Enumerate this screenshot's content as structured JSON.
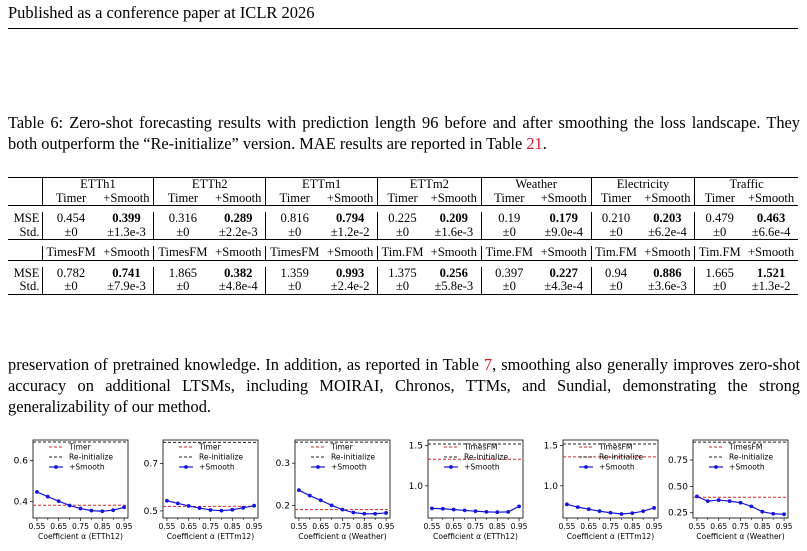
{
  "header": {
    "text": "Published as a conference paper at ICLR 2026"
  },
  "caption": {
    "prefix": "Table 6: Zero-shot forecasting results with prediction length 96 before and after smoothing the loss landscape. They both outperform the “Re-initialize” version. MAE results are reported in Table ",
    "ref": "21",
    "suffix": "."
  },
  "table": {
    "top_groups": [
      "ETTh1",
      "ETTh2",
      "ETTm1",
      "ETTm2",
      "Weather",
      "Electricity",
      "Traffic"
    ],
    "top_sub": [
      "Timer",
      "+Smooth"
    ],
    "top_rows": [
      {
        "label": "MSE",
        "cells": [
          "0.454",
          "0.399",
          "0.316",
          "0.289",
          "0.816",
          "0.794",
          "0.225",
          "0.209",
          "0.19",
          "0.179",
          "0.210",
          "0.203",
          "0.479",
          "0.463"
        ]
      },
      {
        "label": "Std.",
        "cells": [
          "±0",
          "±1.3e-3",
          "±0",
          "±2.2e-3",
          "±0",
          "±1.2e-2",
          "±0",
          "±1.6e-3",
          "±0",
          "±9.0e-4",
          "±0",
          "±6.2e-4",
          "±0",
          "±6.6e-4"
        ]
      }
    ],
    "bottom_sub": [
      "TimesFM",
      "+Smooth",
      "TimesFM",
      "+Smooth",
      "TimesFM",
      "+Smooth",
      "Tim.FM",
      "+Smooth",
      "Time.FM",
      "+Smooth",
      "Tim.FM",
      "+Smooth",
      "Tim.FM",
      "+Smooth"
    ],
    "bottom_rows": [
      {
        "label": "MSE",
        "cells": [
          "0.782",
          "0.741",
          "1.865",
          "0.382",
          "1.359",
          "0.993",
          "1.375",
          "0.256",
          "0.397",
          "0.227",
          "0.94",
          "0.886",
          "1.665",
          "1.521"
        ]
      },
      {
        "label": "Std.",
        "cells": [
          "±0",
          "±7.9e-3",
          "±0",
          "±4.8e-4",
          "±0",
          "±2.4e-2",
          "±0",
          "±5.8e-3",
          "±0",
          "±4.3e-4",
          "±0",
          "±3.6e-3",
          "±0",
          "±1.3e-2"
        ]
      }
    ]
  },
  "body": {
    "prefix": "preservation of pretrained knowledge. In addition, as reported in Table ",
    "ref": "7",
    "suffix": ", smoothing also generally improves zero-shot accuracy on additional LTSMs, including MOIRAI, Chronos, TTMs, and Sundial, demonstrating the strong generalizability of our method."
  },
  "chart_data": [
    {
      "type": "line",
      "xlabel": "Coefficient α (ETTh12)",
      "x": [
        0.55,
        0.6,
        0.65,
        0.7,
        0.75,
        0.8,
        0.85,
        0.9,
        0.95
      ],
      "xticks": [
        "0.55",
        "0.65",
        "0.75",
        "0.85",
        "0.95"
      ],
      "ylim": [
        0.32,
        0.7
      ],
      "yticks": [
        0.4,
        0.6
      ],
      "yticklabels": [
        "0.4",
        "0.6"
      ],
      "hlines": [
        {
          "name": "Timer",
          "y": 0.382,
          "color": "#d62728"
        },
        {
          "name": "Re-initialize",
          "y": 0.69,
          "color": "#222222"
        }
      ],
      "series": [
        {
          "name": "+Smooth",
          "color": "#1515e0",
          "values": [
            0.447,
            0.424,
            0.402,
            0.381,
            0.366,
            0.356,
            0.353,
            0.358,
            0.372
          ]
        }
      ]
    },
    {
      "type": "line",
      "xlabel": "Coefficient α (ETTm12)",
      "x": [
        0.55,
        0.6,
        0.65,
        0.7,
        0.75,
        0.8,
        0.85,
        0.9,
        0.95
      ],
      "xticks": [
        "0.55",
        "0.65",
        "0.75",
        "0.85",
        "0.95"
      ],
      "ylim": [
        0.47,
        0.8
      ],
      "yticks": [
        0.5,
        0.7
      ],
      "yticklabels": [
        "0.5",
        "0.7"
      ],
      "hlines": [
        {
          "name": "Timer",
          "y": 0.519,
          "color": "#d62728"
        },
        {
          "name": "Re-initialize",
          "y": 0.79,
          "color": "#222222"
        }
      ],
      "series": [
        {
          "name": "+Smooth",
          "color": "#1515e0",
          "values": [
            0.543,
            0.532,
            0.521,
            0.512,
            0.504,
            0.501,
            0.505,
            0.513,
            0.522
          ]
        }
      ]
    },
    {
      "type": "line",
      "xlabel": "Coefficient α (Weather)",
      "x": [
        0.55,
        0.6,
        0.65,
        0.7,
        0.75,
        0.8,
        0.85,
        0.9,
        0.95
      ],
      "xticks": [
        "0.55",
        "0.65",
        "0.75",
        "0.85",
        "0.95"
      ],
      "ylim": [
        0.17,
        0.355
      ],
      "yticks": [
        0.2,
        0.3
      ],
      "yticklabels": [
        "0.2",
        "0.3"
      ],
      "hlines": [
        {
          "name": "Timer",
          "y": 0.19,
          "color": "#d62728"
        },
        {
          "name": "Re-initialize",
          "y": 0.35,
          "color": "#222222"
        }
      ],
      "series": [
        {
          "name": "+Smooth",
          "color": "#1515e0",
          "values": [
            0.236,
            0.223,
            0.212,
            0.2,
            0.19,
            0.183,
            0.18,
            0.18,
            0.182
          ]
        }
      ]
    },
    {
      "type": "line",
      "xlabel": "Coefficient α (ETTh12)",
      "x": [
        0.55,
        0.6,
        0.65,
        0.7,
        0.75,
        0.8,
        0.85,
        0.9,
        0.95
      ],
      "xticks": [
        "0.55",
        "0.65",
        "0.75",
        "0.85",
        "0.95"
      ],
      "ylim": [
        0.6,
        1.57
      ],
      "yticks": [
        1.0,
        1.5
      ],
      "yticklabels": [
        "1.0",
        "1.5"
      ],
      "hlines": [
        {
          "name": "TimesFM",
          "y": 1.33,
          "color": "#d62728"
        },
        {
          "name": "Re-initialize",
          "y": 1.52,
          "color": "#222222"
        }
      ],
      "series": [
        {
          "name": "+Smooth",
          "color": "#1515e0",
          "values": [
            0.72,
            0.715,
            0.705,
            0.695,
            0.685,
            0.676,
            0.672,
            0.676,
            0.745
          ]
        }
      ]
    },
    {
      "type": "line",
      "xlabel": "Coefficient α (ETTm12)",
      "x": [
        0.55,
        0.6,
        0.65,
        0.7,
        0.75,
        0.8,
        0.85,
        0.9,
        0.95
      ],
      "xticks": [
        "0.55",
        "0.65",
        "0.75",
        "0.85",
        "0.95"
      ],
      "ylim": [
        0.6,
        1.57
      ],
      "yticks": [
        1.0,
        1.5
      ],
      "yticklabels": [
        "1.0",
        "1.5"
      ],
      "hlines": [
        {
          "name": "TimesFM",
          "y": 1.36,
          "color": "#d62728"
        },
        {
          "name": "Re-initialize",
          "y": 1.52,
          "color": "#222222"
        }
      ],
      "series": [
        {
          "name": "+Smooth",
          "color": "#1515e0",
          "values": [
            0.77,
            0.735,
            0.71,
            0.685,
            0.665,
            0.65,
            0.66,
            0.685,
            0.725
          ]
        }
      ]
    },
    {
      "type": "line",
      "xlabel": "Coefficient α (Weather)",
      "x": [
        0.55,
        0.6,
        0.65,
        0.7,
        0.75,
        0.8,
        0.85,
        0.9,
        0.95
      ],
      "xticks": [
        "0.55",
        "0.65",
        "0.75",
        "0.85",
        "0.95"
      ],
      "ylim": [
        0.2,
        0.94
      ],
      "yticks": [
        0.25,
        0.5,
        0.75
      ],
      "yticklabels": [
        "0.25",
        "0.50",
        "0.75"
      ],
      "hlines": [
        {
          "name": "TimesFM",
          "y": 0.397,
          "color": "#d62728"
        },
        {
          "name": "Re-initialize",
          "y": 0.92,
          "color": "#222222"
        }
      ],
      "series": [
        {
          "name": "+Smooth",
          "color": "#1515e0",
          "values": [
            0.405,
            0.36,
            0.37,
            0.36,
            0.345,
            0.31,
            0.26,
            0.24,
            0.235
          ]
        }
      ]
    }
  ]
}
